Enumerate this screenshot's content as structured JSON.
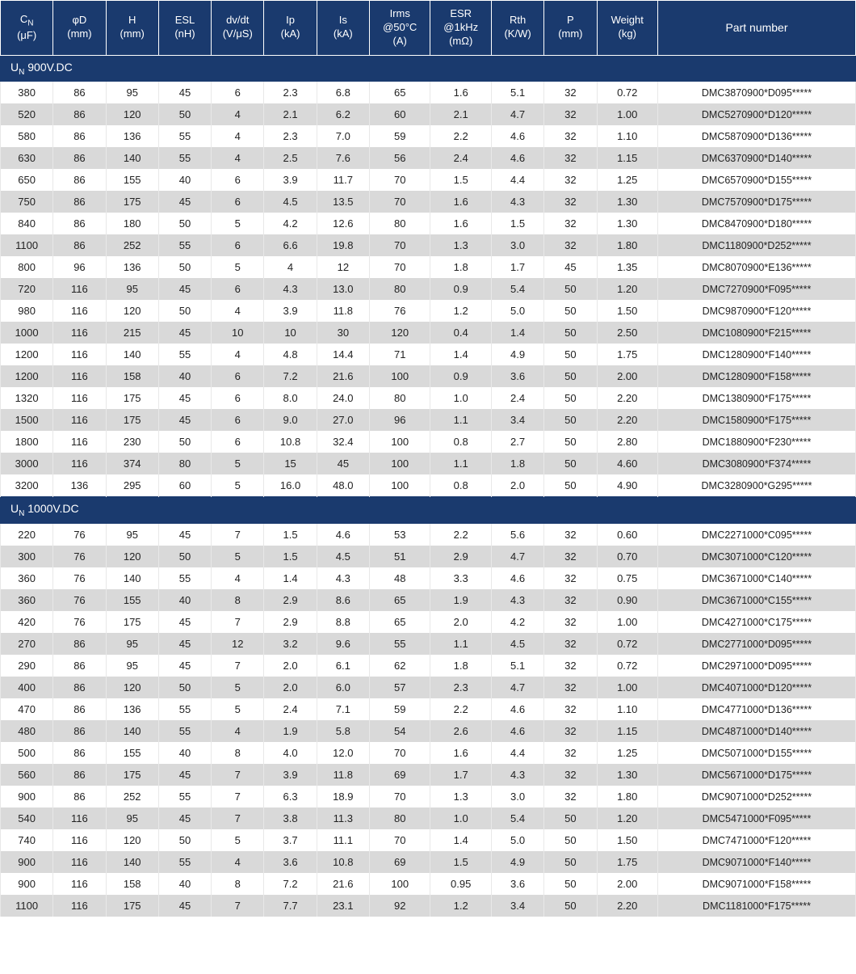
{
  "columns": [
    {
      "l1": "C",
      "sub": "N",
      "l2": "(μF)"
    },
    {
      "l1": "φD",
      "sub": "",
      "l2": "(mm)"
    },
    {
      "l1": "H",
      "sub": "",
      "l2": "(mm)"
    },
    {
      "l1": "ESL",
      "sub": "",
      "l2": "(nH)"
    },
    {
      "l1": "dv/dt",
      "sub": "",
      "l2": "(V/μS)"
    },
    {
      "l1": "Ip",
      "sub": "",
      "l2": "(kA)"
    },
    {
      "l1": "Is",
      "sub": "",
      "l2": "(kA)"
    },
    {
      "l1": "Irms",
      "sub": "",
      "l2": "@50°C",
      "l3": "(A)"
    },
    {
      "l1": "ESR",
      "sub": "",
      "l2": "@1kHz",
      "l3": "(mΩ)"
    },
    {
      "l1": "Rth",
      "sub": "",
      "l2": "(K/W)"
    },
    {
      "l1": "P",
      "sub": "",
      "l2": "(mm)"
    },
    {
      "l1": "Weight",
      "sub": "",
      "l2": "(kg)"
    },
    {
      "l1": "Part number",
      "sub": "",
      "l2": ""
    }
  ],
  "sections": [
    {
      "title_pre": "U",
      "title_sub": "N",
      "title_post": " 900V.DC",
      "rows": [
        [
          "380",
          "86",
          "95",
          "45",
          "6",
          "2.3",
          "6.8",
          "65",
          "1.6",
          "5.1",
          "32",
          "0.72",
          "DMC3870900*D095*****"
        ],
        [
          "520",
          "86",
          "120",
          "50",
          "4",
          "2.1",
          "6.2",
          "60",
          "2.1",
          "4.7",
          "32",
          "1.00",
          "DMC5270900*D120*****"
        ],
        [
          "580",
          "86",
          "136",
          "55",
          "4",
          "2.3",
          "7.0",
          "59",
          "2.2",
          "4.6",
          "32",
          "1.10",
          "DMC5870900*D136*****"
        ],
        [
          "630",
          "86",
          "140",
          "55",
          "4",
          "2.5",
          "7.6",
          "56",
          "2.4",
          "4.6",
          "32",
          "1.15",
          "DMC6370900*D140*****"
        ],
        [
          "650",
          "86",
          "155",
          "40",
          "6",
          "3.9",
          "11.7",
          "70",
          "1.5",
          "4.4",
          "32",
          "1.25",
          "DMC6570900*D155*****"
        ],
        [
          "750",
          "86",
          "175",
          "45",
          "6",
          "4.5",
          "13.5",
          "70",
          "1.6",
          "4.3",
          "32",
          "1.30",
          "DMC7570900*D175*****"
        ],
        [
          "840",
          "86",
          "180",
          "50",
          "5",
          "4.2",
          "12.6",
          "80",
          "1.6",
          "1.5",
          "32",
          "1.30",
          "DMC8470900*D180*****"
        ],
        [
          "1100",
          "86",
          "252",
          "55",
          "6",
          "6.6",
          "19.8",
          "70",
          "1.3",
          "3.0",
          "32",
          "1.80",
          "DMC1180900*D252*****"
        ],
        [
          "800",
          "96",
          "136",
          "50",
          "5",
          "4",
          "12",
          "70",
          "1.8",
          "1.7",
          "45",
          "1.35",
          "DMC8070900*E136*****"
        ],
        [
          "720",
          "116",
          "95",
          "45",
          "6",
          "4.3",
          "13.0",
          "80",
          "0.9",
          "5.4",
          "50",
          "1.20",
          "DMC7270900*F095*****"
        ],
        [
          "980",
          "116",
          "120",
          "50",
          "4",
          "3.9",
          "11.8",
          "76",
          "1.2",
          "5.0",
          "50",
          "1.50",
          "DMC9870900*F120*****"
        ],
        [
          "1000",
          "116",
          "215",
          "45",
          "10",
          "10",
          "30",
          "120",
          "0.4",
          "1.4",
          "50",
          "2.50",
          "DMC1080900*F215*****"
        ],
        [
          "1200",
          "116",
          "140",
          "55",
          "4",
          "4.8",
          "14.4",
          "71",
          "1.4",
          "4.9",
          "50",
          "1.75",
          "DMC1280900*F140*****"
        ],
        [
          "1200",
          "116",
          "158",
          "40",
          "6",
          "7.2",
          "21.6",
          "100",
          "0.9",
          "3.6",
          "50",
          "2.00",
          "DMC1280900*F158*****"
        ],
        [
          "1320",
          "116",
          "175",
          "45",
          "6",
          "8.0",
          "24.0",
          "80",
          "1.0",
          "2.4",
          "50",
          "2.20",
          "DMC1380900*F175*****"
        ],
        [
          "1500",
          "116",
          "175",
          "45",
          "6",
          "9.0",
          "27.0",
          "96",
          "1.1",
          "3.4",
          "50",
          "2.20",
          "DMC1580900*F175*****"
        ],
        [
          "1800",
          "116",
          "230",
          "50",
          "6",
          "10.8",
          "32.4",
          "100",
          "0.8",
          "2.7",
          "50",
          "2.80",
          "DMC1880900*F230*****"
        ],
        [
          "3000",
          "116",
          "374",
          "80",
          "5",
          "15",
          "45",
          "100",
          "1.1",
          "1.8",
          "50",
          "4.60",
          "DMC3080900*F374*****"
        ],
        [
          "3200",
          "136",
          "295",
          "60",
          "5",
          "16.0",
          "48.0",
          "100",
          "0.8",
          "2.0",
          "50",
          "4.90",
          "DMC3280900*G295*****"
        ]
      ]
    },
    {
      "title_pre": "U",
      "title_sub": "N",
      "title_post": " 1000V.DC",
      "rows": [
        [
          "220",
          "76",
          "95",
          "45",
          "7",
          "1.5",
          "4.6",
          "53",
          "2.2",
          "5.6",
          "32",
          "0.60",
          "DMC2271000*C095*****"
        ],
        [
          "300",
          "76",
          "120",
          "50",
          "5",
          "1.5",
          "4.5",
          "51",
          "2.9",
          "4.7",
          "32",
          "0.70",
          "DMC3071000*C120*****"
        ],
        [
          "360",
          "76",
          "140",
          "55",
          "4",
          "1.4",
          "4.3",
          "48",
          "3.3",
          "4.6",
          "32",
          "0.75",
          "DMC3671000*C140*****"
        ],
        [
          "360",
          "76",
          "155",
          "40",
          "8",
          "2.9",
          "8.6",
          "65",
          "1.9",
          "4.3",
          "32",
          "0.90",
          "DMC3671000*C155*****"
        ],
        [
          "420",
          "76",
          "175",
          "45",
          "7",
          "2.9",
          "8.8",
          "65",
          "2.0",
          "4.2",
          "32",
          "1.00",
          "DMC4271000*C175*****"
        ],
        [
          "270",
          "86",
          "95",
          "45",
          "12",
          "3.2",
          "9.6",
          "55",
          "1.1",
          "4.5",
          "32",
          "0.72",
          "DMC2771000*D095*****"
        ],
        [
          "290",
          "86",
          "95",
          "45",
          "7",
          "2.0",
          "6.1",
          "62",
          "1.8",
          "5.1",
          "32",
          "0.72",
          "DMC2971000*D095*****"
        ],
        [
          "400",
          "86",
          "120",
          "50",
          "5",
          "2.0",
          "6.0",
          "57",
          "2.3",
          "4.7",
          "32",
          "1.00",
          "DMC4071000*D120*****"
        ],
        [
          "470",
          "86",
          "136",
          "55",
          "5",
          "2.4",
          "7.1",
          "59",
          "2.2",
          "4.6",
          "32",
          "1.10",
          "DMC4771000*D136*****"
        ],
        [
          "480",
          "86",
          "140",
          "55",
          "4",
          "1.9",
          "5.8",
          "54",
          "2.6",
          "4.6",
          "32",
          "1.15",
          "DMC4871000*D140*****"
        ],
        [
          "500",
          "86",
          "155",
          "40",
          "8",
          "4.0",
          "12.0",
          "70",
          "1.6",
          "4.4",
          "32",
          "1.25",
          "DMC5071000*D155*****"
        ],
        [
          "560",
          "86",
          "175",
          "45",
          "7",
          "3.9",
          "11.8",
          "69",
          "1.7",
          "4.3",
          "32",
          "1.30",
          "DMC5671000*D175*****"
        ],
        [
          "900",
          "86",
          "252",
          "55",
          "7",
          "6.3",
          "18.9",
          "70",
          "1.3",
          "3.0",
          "32",
          "1.80",
          "DMC9071000*D252*****"
        ],
        [
          "540",
          "116",
          "95",
          "45",
          "7",
          "3.8",
          "11.3",
          "80",
          "1.0",
          "5.4",
          "50",
          "1.20",
          "DMC5471000*F095*****"
        ],
        [
          "740",
          "116",
          "120",
          "50",
          "5",
          "3.7",
          "11.1",
          "70",
          "1.4",
          "5.0",
          "50",
          "1.50",
          "DMC7471000*F120*****"
        ],
        [
          "900",
          "116",
          "140",
          "55",
          "4",
          "3.6",
          "10.8",
          "69",
          "1.5",
          "4.9",
          "50",
          "1.75",
          "DMC9071000*F140*****"
        ],
        [
          "900",
          "116",
          "158",
          "40",
          "8",
          "7.2",
          "21.6",
          "100",
          "0.95",
          "3.6",
          "50",
          "2.00",
          "DMC9071000*F158*****"
        ],
        [
          "1100",
          "116",
          "175",
          "45",
          "7",
          "7.7",
          "23.1",
          "92",
          "1.2",
          "3.4",
          "50",
          "2.20",
          "DMC1181000*F175*****"
        ]
      ]
    }
  ]
}
